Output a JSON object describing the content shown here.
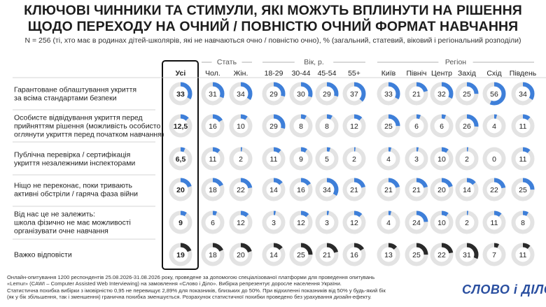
{
  "title_lines": [
    "КЛЮЧОВІ ЧИННИКИ ТА СТИМУЛИ, ЯКІ МОЖУТЬ ВПЛИНУТИ НА РІШЕННЯ",
    "ЩОДО ПЕРЕХОДУ НА ОЧНИЙ / ПОВНІСТЮ ОЧНИЙ ФОРМАТ НАВЧАННЯ"
  ],
  "subtitle": "N = 256 (ті, хто має в родинах дітей-школярів, які не навчаються очно / повністю очно), % (загальний, статевий, віковий і регіональний розподіли)",
  "colors": {
    "accent": "#3e7fd9",
    "dark": "#2a2a2a",
    "track": "#e3e3e3",
    "divider": "#c8c8c8"
  },
  "chart_data": {
    "type": "table",
    "group_labels": [
      "Стать",
      "Вік, р.",
      "Регіон"
    ],
    "columns": [
      "Усі",
      "Чол.",
      "Жін.",
      "18-29",
      "30-44",
      "45-54",
      "55+",
      "Київ",
      "Північ",
      "Центр",
      "Захід",
      "Схід",
      "Південь"
    ],
    "rows": [
      {
        "label": [
          "Гарантоване облаштування укриття",
          "за всіма стандартами безпеки"
        ],
        "values": [
          "33",
          "31",
          "34",
          "29",
          "30",
          "29",
          "37",
          "33",
          "21",
          "32",
          "25",
          "56",
          "34"
        ]
      },
      {
        "label": [
          "Особисте відвідування укриття перед",
          "прийняттям рішення (можливість особисто",
          "оглянути укриття перед початком навчання)"
        ],
        "values": [
          "12,5",
          "16",
          "10",
          "29",
          "8",
          "8",
          "12",
          "25",
          "6",
          "6",
          "26",
          "4",
          "11"
        ]
      },
      {
        "label": [
          "Публічна перевірка / сертифікація",
          "укриття незалежними інспекторами"
        ],
        "values": [
          "6,5",
          "11",
          "2",
          "11",
          "9",
          "5",
          "2",
          "4",
          "3",
          "10",
          "2",
          "0",
          "11"
        ]
      },
      {
        "label": [
          "Ніщо не переконає, поки тривають",
          "активні обстріли / гаряча фаза війни"
        ],
        "values": [
          "20",
          "18",
          "22",
          "14",
          "16",
          "34",
          "21",
          "21",
          "21",
          "20",
          "14",
          "22",
          "25"
        ]
      },
      {
        "label": [
          "Від нас це не залежить:",
          "школа фізично не має можливості",
          "організувати очне навчання"
        ],
        "values": [
          "9",
          "6",
          "12",
          "3",
          "12",
          "3",
          "12",
          "4",
          "24",
          "10",
          "2",
          "11",
          "8"
        ]
      },
      {
        "label": [
          "Важко відповісти"
        ],
        "values": [
          "19",
          "18",
          "20",
          "14",
          "25",
          "21",
          "16",
          "13",
          "25",
          "22",
          "31",
          "7",
          "11"
        ]
      }
    ]
  },
  "footer_lines": [
    "Онлайн-опитування 1200 респондентів 25.08.2026-31.08.2026 року, проведене за допомогою спеціалізованої платформи для проведення опитувань",
    "«Lemur» (CAWI – Computer Assisted Web Interviewing) на замовлення «Слово і Діло». Вибірка репрезентує доросле населення України.",
    "Статистична похибка вибірки з імовірністю 0,95 не перевищує 2,89% для показників, близьких до 50%. При відхиленні показників від 50% у будь-який бік",
    "(як у бік збільшення, так і зменшення) гранична похибка зменшується. Розрахунок статистичної похибки проведено без урахування дизайн-ефекту."
  ],
  "logo": "СЛОВО і ДІЛО"
}
